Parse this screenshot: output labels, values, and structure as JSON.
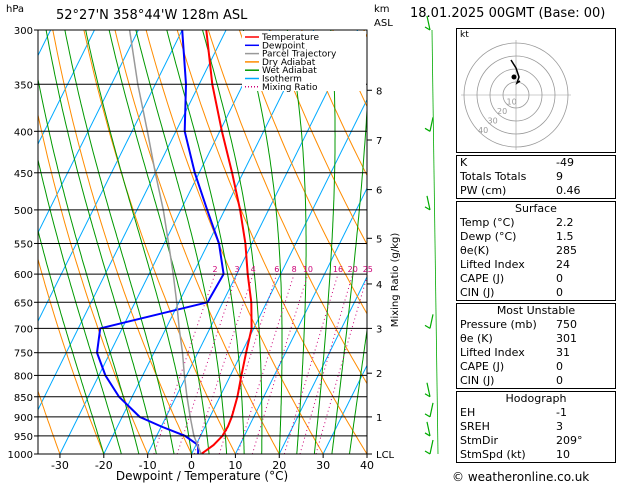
{
  "header": {
    "location": "52°27'N  358°44'W  128m  ASL",
    "date": "18.01.2025  00GMT  (Base: 00)",
    "pressure_unit": "hPa",
    "km_label": "km",
    "asl_label": "ASL",
    "credit": "© weatheronline.co.uk"
  },
  "chart_data": {
    "type": "line",
    "xlabel": "Dewpoint / Temperature (°C)",
    "ylabel": "hPa",
    "right_label": "Mixing Ratio (g/kg)",
    "x_ticks": [
      -30,
      -20,
      -10,
      0,
      10,
      20,
      30,
      40
    ],
    "xlim": [
      -35,
      40
    ],
    "ylim": [
      1000,
      300
    ],
    "y_scale": "log",
    "pressure_levels": [
      300,
      350,
      400,
      450,
      500,
      550,
      600,
      650,
      700,
      750,
      800,
      850,
      900,
      950,
      1000
    ],
    "km_ticks": [
      {
        "label": "8",
        "p": 356
      },
      {
        "label": "7",
        "p": 410
      },
      {
        "label": "6",
        "p": 472
      },
      {
        "label": "5",
        "p": 542
      },
      {
        "label": "4",
        "p": 617
      },
      {
        "label": "3",
        "p": 700
      },
      {
        "label": "2",
        "p": 795
      },
      {
        "label": "1",
        "p": 900
      },
      {
        "label": "LCL",
        "p": 1000
      }
    ],
    "mixing_ratio_labels": [
      "2",
      "3",
      "4",
      "6",
      "8",
      "10",
      "16",
      "20",
      "25"
    ],
    "mixing_ratio_values": [
      2,
      3,
      4,
      6,
      8,
      10,
      16,
      20,
      25
    ],
    "legend": [
      {
        "name": "Temperature",
        "color": "#ff0000",
        "style": "solid"
      },
      {
        "name": "Dewpoint",
        "color": "#0000ff",
        "style": "solid"
      },
      {
        "name": "Parcel Trajectory",
        "color": "#999999",
        "style": "solid"
      },
      {
        "name": "Dry Adiabat",
        "color": "#ff8c00",
        "style": "solid"
      },
      {
        "name": "Wet Adiabat",
        "color": "#009900",
        "style": "solid"
      },
      {
        "name": "Isotherm",
        "color": "#00aaff",
        "style": "solid"
      },
      {
        "name": "Mixing Ratio",
        "color": "#cc0077",
        "style": "dotted"
      }
    ],
    "series": [
      {
        "name": "Temperature",
        "color": "#ff0000",
        "p": [
          1000,
          975,
          950,
          925,
          900,
          850,
          800,
          750,
          700,
          650,
          600,
          550,
          500,
          450,
          400,
          350,
          300
        ],
        "t": [
          2.2,
          4.0,
          5.0,
          5.2,
          5.0,
          4.0,
          2.5,
          1.0,
          -0.5,
          -3.5,
          -7.5,
          -11.5,
          -16.5,
          -22.5,
          -29.5,
          -37.0,
          -44.5
        ]
      },
      {
        "name": "Dewpoint",
        "color": "#0000ff",
        "p": [
          1000,
          975,
          950,
          925,
          900,
          850,
          800,
          750,
          700,
          650,
          600,
          550,
          500,
          450,
          400,
          350,
          300
        ],
        "t": [
          1.5,
          0.5,
          -3.5,
          -10.0,
          -16.0,
          -23.0,
          -28.5,
          -33.0,
          -35.0,
          -13.5,
          -13.0,
          -17.5,
          -24.0,
          -31.0,
          -38.0,
          -43.0,
          -50.0
        ]
      },
      {
        "name": "Parcel Trajectory",
        "color": "#999999",
        "p": [
          1000,
          950,
          900,
          850,
          800,
          750,
          700,
          650,
          600,
          550,
          500,
          450,
          400,
          350,
          300
        ],
        "t": [
          2.2,
          -1.5,
          -4.5,
          -7.5,
          -10.5,
          -13.5,
          -17.0,
          -20.5,
          -24.5,
          -29.0,
          -34.0,
          -40.0,
          -46.5,
          -54.0,
          -62.0
        ]
      }
    ],
    "wind_barbs_p": [
      300,
      400,
      500,
      700,
      850,
      900,
      950,
      1000
    ]
  },
  "hodograph": {
    "unit_label": "kt",
    "ring_labels": [
      "10",
      "20",
      "30",
      "40"
    ]
  },
  "indices": {
    "general": [
      {
        "label": "K",
        "value": "-49"
      },
      {
        "label": "Totals Totals",
        "value": "9"
      },
      {
        "label": "PW (cm)",
        "value": "0.46"
      }
    ],
    "surface": {
      "title": "Surface",
      "rows": [
        {
          "label": "Temp (°C)",
          "value": "2.2"
        },
        {
          "label": "Dewp (°C)",
          "value": "1.5"
        },
        {
          "label": "θe(K)",
          "value": "285"
        },
        {
          "label": "Lifted Index",
          "value": "24"
        },
        {
          "label": "CAPE (J)",
          "value": "0"
        },
        {
          "label": "CIN (J)",
          "value": "0"
        }
      ]
    },
    "most_unstable": {
      "title": "Most Unstable",
      "rows": [
        {
          "label": "Pressure (mb)",
          "value": "750"
        },
        {
          "label": "θe (K)",
          "value": "301"
        },
        {
          "label": "Lifted Index",
          "value": "31"
        },
        {
          "label": "CAPE (J)",
          "value": "0"
        },
        {
          "label": "CIN (J)",
          "value": "0"
        }
      ]
    },
    "hodograph": {
      "title": "Hodograph",
      "rows": [
        {
          "label": "EH",
          "value": "-1"
        },
        {
          "label": "SREH",
          "value": "3"
        },
        {
          "label": "StmDir",
          "value": "209°"
        },
        {
          "label": "StmSpd (kt)",
          "value": "10"
        }
      ]
    }
  }
}
